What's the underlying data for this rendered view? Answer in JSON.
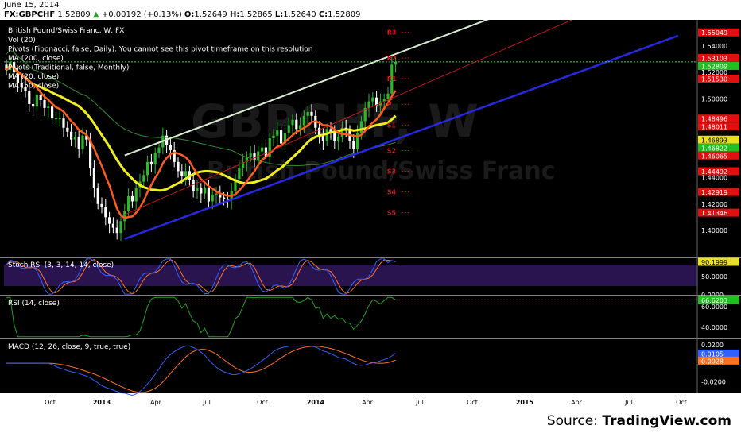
{
  "header": {
    "date": "June 15, 2014",
    "symbol": "FX:GBPCHF",
    "last": "1.52809",
    "change": "+0.00192 (+0.13%)",
    "o_label": "O:",
    "o": "1.52649",
    "h_label": "H:",
    "h": "1.52865",
    "l_label": "L:",
    "l": "1.52640",
    "c_label": "C:",
    "c": "1.52809"
  },
  "source": {
    "prefix": "Source: ",
    "brand": "TradingView.com"
  },
  "colors": {
    "bg": "#000000",
    "up": "#2bb82b",
    "down": "#ffffff",
    "ema20": "#ff5a1f",
    "ema50": "#f0ee20",
    "ma200": "#2e8b2e",
    "upper_channel": "#d8ecd0",
    "lower_channel": "#2828e0",
    "mid_channel": "#c01818",
    "rsi": "#20a020",
    "stoch_k": "#3060ff",
    "stoch_d": "#ff7020",
    "macd": "#3060ff",
    "signal": "#ff7020",
    "label_red": "#e01010",
    "label_green": "#10c010",
    "label_blue": "#1040d0"
  },
  "chart_data": [
    {
      "type": "candlestick",
      "title": "British Pound/Swiss Franc, W, FX",
      "legend": [
        "Vol (20)",
        "Pivots (Fibonacci, false, Daily): You cannot see this pivot timeframe on this resolution",
        "MA (200, close)",
        "Pivots (Traditional, false, Monthly)",
        "MA (20, close)",
        "MA (50, close)"
      ],
      "watermark": [
        "GBPCHF, W",
        "British Pound/Swiss Franc"
      ],
      "x_ticks": [
        "Oct",
        "2013",
        "Apr",
        "Jul",
        "Oct",
        "2014",
        "Apr",
        "Jul",
        "Oct",
        "2015",
        "Apr",
        "Jul",
        "Oct"
      ],
      "ylim": [
        1.38,
        1.56
      ],
      "y_ticks": [
        "1.54000",
        "1.52000",
        "1.50000",
        "1.44000",
        "1.42000",
        "1.40000"
      ],
      "price_labels": [
        {
          "text": "1.55049",
          "color": "red"
        },
        {
          "text": "1.53103",
          "color": "red"
        },
        {
          "text": "1.52809",
          "color": "green"
        },
        {
          "text": "1.51530",
          "color": "red"
        },
        {
          "text": "1.48496",
          "color": "red"
        },
        {
          "text": "1.48011",
          "color": "red"
        },
        {
          "text": "1.46893",
          "color": "yellow"
        },
        {
          "text": "1.46822",
          "color": "green"
        },
        {
          "text": "1.46065",
          "color": "red"
        },
        {
          "text": "1.44492",
          "color": "red"
        },
        {
          "text": "1.42919",
          "color": "red"
        },
        {
          "text": "1.41346",
          "color": "red"
        }
      ],
      "pivots": [
        {
          "label": "R3",
          "value": 1.55049
        },
        {
          "label": "R2",
          "value": 1.53103
        },
        {
          "label": "R1",
          "value": 1.5153
        },
        {
          "label": "P",
          "value": 1.49584
        },
        {
          "label": "S1",
          "value": 1.48011
        },
        {
          "label": "S2",
          "value": 1.46065
        },
        {
          "label": "S3",
          "value": 1.44492
        },
        {
          "label": "S4",
          "value": 1.42919
        },
        {
          "label": "S5",
          "value": 1.41346
        }
      ],
      "weekly_close": [
        1.522,
        1.528,
        1.52,
        1.512,
        1.509,
        1.506,
        1.496,
        1.494,
        1.503,
        1.499,
        1.493,
        1.494,
        1.485,
        1.485,
        1.485,
        1.478,
        1.475,
        1.469,
        1.471,
        1.462,
        1.472,
        1.469,
        1.447,
        1.432,
        1.42,
        1.418,
        1.41,
        1.405,
        1.402,
        1.398,
        1.407,
        1.415,
        1.426,
        1.422,
        1.432,
        1.437,
        1.442,
        1.452,
        1.45,
        1.459,
        1.463,
        1.472,
        1.465,
        1.461,
        1.452,
        1.445,
        1.441,
        1.445,
        1.438,
        1.43,
        1.432,
        1.428,
        1.432,
        1.422,
        1.427,
        1.428,
        1.425,
        1.424,
        1.423,
        1.43,
        1.439,
        1.447,
        1.452,
        1.456,
        1.459,
        1.453,
        1.46,
        1.463,
        1.456,
        1.47,
        1.472,
        1.476,
        1.466,
        1.474,
        1.48,
        1.484,
        1.477,
        1.48,
        1.487,
        1.49,
        1.487,
        1.478,
        1.472,
        1.468,
        1.477,
        1.474,
        1.468,
        1.471,
        1.478,
        1.476,
        1.468,
        1.462,
        1.474,
        1.483,
        1.493,
        1.498,
        1.501,
        1.495,
        1.498,
        1.5,
        1.504,
        1.526,
        1.528
      ],
      "stoch_rsi": {
        "title": "Stoch RSI (3, 3, 14, 14, close)",
        "value": "90.1999",
        "ylim": [
          0,
          100
        ],
        "y_ticks": [
          "50.0000",
          "0.0000"
        ]
      },
      "rsi": {
        "title": "RSI (14, close)",
        "value": "66.6203",
        "ylim": [
          30,
          70
        ],
        "y_ticks": [
          "60.0000",
          "40.0000"
        ]
      },
      "macd": {
        "title": "MACD (12, 26, close, 9, true, true)",
        "value_macd": "0.0105",
        "value_signal": "0.0028",
        "ylim": [
          -0.03,
          0.025
        ],
        "y_ticks": [
          "0.0200",
          "0.0000",
          "-0.0200"
        ]
      }
    }
  ]
}
